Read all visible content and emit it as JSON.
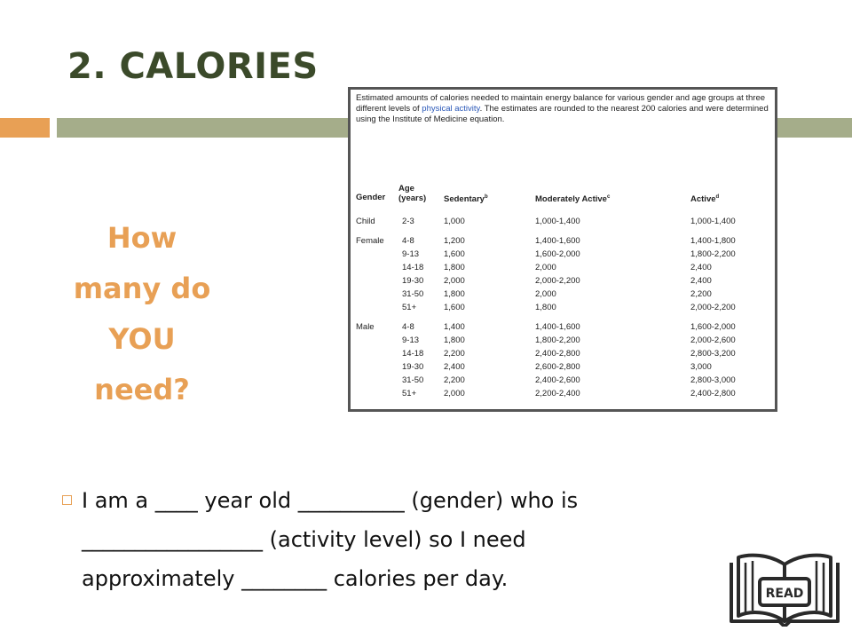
{
  "slide": {
    "title": "2. CALORIES",
    "question_lines": [
      "How",
      "many do",
      "YOU",
      "need?"
    ],
    "bullet_lines": [
      "I am a ____ year old __________ (gender) who is",
      "_________________ (activity level) so I need",
      "approximately ________ calories per day."
    ],
    "read_icon_label": "READ"
  },
  "table": {
    "intro_before": "Estimated amounts of calories needed to maintain energy balance for various gender and age groups at three different levels of ",
    "intro_link": "physical activity",
    "intro_after": ". The estimates are rounded to the nearest 200 calories and were determined using the Institute of Medicine equation.",
    "headers": {
      "gender": "Gender",
      "age_line1": "Age",
      "age_line2": "(years)",
      "sedentary": "Sedentary",
      "sedentary_sup": "b",
      "moderate": "Moderately Active",
      "moderate_sup": "c",
      "active": "Active",
      "active_sup": "d"
    },
    "rows": [
      {
        "gender": "Child",
        "age": "2-3",
        "sed": "1,000",
        "mod": "1,000-1,400",
        "act": "1,000-1,400"
      },
      {
        "gender": "Female",
        "age": "4-8",
        "sed": "1,200",
        "mod": "1,400-1,600",
        "act": "1,400-1,800"
      },
      {
        "gender": "",
        "age": "9-13",
        "sed": "1,600",
        "mod": "1,600-2,000",
        "act": "1,800-2,200"
      },
      {
        "gender": "",
        "age": "14-18",
        "sed": "1,800",
        "mod": "2,000",
        "act": "2,400"
      },
      {
        "gender": "",
        "age": "19-30",
        "sed": "2,000",
        "mod": "2,000-2,200",
        "act": "2,400"
      },
      {
        "gender": "",
        "age": "31-50",
        "sed": "1,800",
        "mod": "2,000",
        "act": "2,200"
      },
      {
        "gender": "",
        "age": "51+",
        "sed": "1,600",
        "mod": "1,800",
        "act": "2,000-2,200"
      },
      {
        "gender": "Male",
        "age": "4-8",
        "sed": "1,400",
        "mod": "1,400-1,600",
        "act": "1,600-2,000"
      },
      {
        "gender": "",
        "age": "9-13",
        "sed": "1,800",
        "mod": "1,800-2,200",
        "act": "2,000-2,600"
      },
      {
        "gender": "",
        "age": "14-18",
        "sed": "2,200",
        "mod": "2,400-2,800",
        "act": "2,800-3,200"
      },
      {
        "gender": "",
        "age": "19-30",
        "sed": "2,400",
        "mod": "2,600-2,800",
        "act": "3,000"
      },
      {
        "gender": "",
        "age": "31-50",
        "sed": "2,200",
        "mod": "2,400-2,600",
        "act": "2,800-3,000"
      },
      {
        "gender": "",
        "age": "51+",
        "sed": "2,000",
        "mod": "2,200-2,400",
        "act": "2,400-2,800"
      }
    ]
  },
  "colors": {
    "title": "#3b4a2a",
    "accent_orange": "#e8a055",
    "accent_green": "#a5ad8a",
    "link_blue": "#2a58b8"
  }
}
